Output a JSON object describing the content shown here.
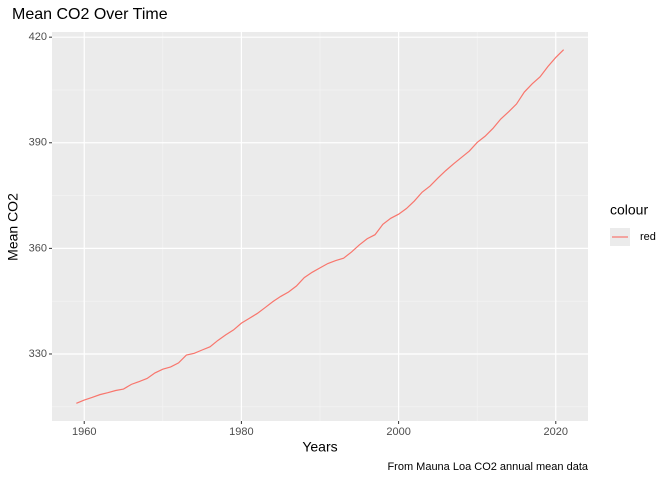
{
  "chart_data": {
    "type": "line",
    "title": "Mean CO2 Over Time",
    "x_label": "Years",
    "y_label": "Mean CO2",
    "caption": "From Mauna Loa CO2 annual mean data",
    "legend_title": "colour",
    "legend_position": "right",
    "grid": true,
    "x": [
      1959,
      1960,
      1961,
      1962,
      1963,
      1964,
      1965,
      1966,
      1967,
      1968,
      1969,
      1970,
      1971,
      1972,
      1973,
      1974,
      1975,
      1976,
      1977,
      1978,
      1979,
      1980,
      1981,
      1982,
      1983,
      1984,
      1985,
      1986,
      1987,
      1988,
      1989,
      1990,
      1991,
      1992,
      1993,
      1994,
      1995,
      1996,
      1997,
      1998,
      1999,
      2000,
      2001,
      2002,
      2003,
      2004,
      2005,
      2006,
      2007,
      2008,
      2009,
      2010,
      2011,
      2012,
      2013,
      2014,
      2015,
      2016,
      2017,
      2018,
      2019,
      2020,
      2021
    ],
    "series": [
      {
        "name": "red",
        "color": "#F8766D",
        "values": [
          315.98,
          316.91,
          317.64,
          318.45,
          318.99,
          319.62,
          320.04,
          321.37,
          322.18,
          323.05,
          324.62,
          325.68,
          326.32,
          327.46,
          329.68,
          330.19,
          331.13,
          332.03,
          333.84,
          335.41,
          336.84,
          338.76,
          340.12,
          341.48,
          343.15,
          344.87,
          346.35,
          347.61,
          349.31,
          351.69,
          353.2,
          354.45,
          355.7,
          356.54,
          357.21,
          358.96,
          360.97,
          362.74,
          363.88,
          366.84,
          368.54,
          369.71,
          371.32,
          373.45,
          375.98,
          377.7,
          379.98,
          382.09,
          384.02,
          385.83,
          387.64,
          390.1,
          391.85,
          394.06,
          396.74,
          398.81,
          401.01,
          404.41,
          406.76,
          408.72,
          411.66,
          414.24,
          416.45
        ]
      }
    ],
    "xlim": [
      1955.9,
      2024.1
    ],
    "xticks": [
      1960,
      1980,
      2000,
      2020
    ],
    "ylim": [
      310.96,
      421.47
    ],
    "yticks": [
      330,
      360,
      390,
      420
    ]
  }
}
